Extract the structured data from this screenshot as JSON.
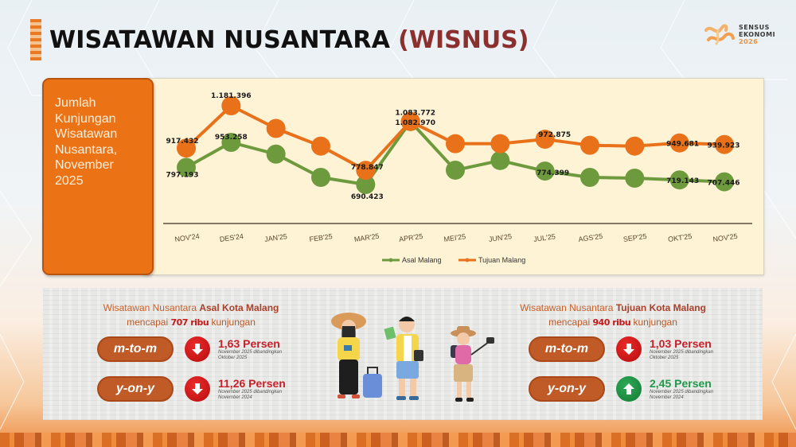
{
  "header": {
    "title_main": "WISATAWAN NUSANTARA",
    "title_accent": "(WISNUS)",
    "logo": {
      "line1": "SENSUS",
      "line2": "EKONOMI",
      "line3": "2026"
    }
  },
  "side_card": {
    "lines": [
      "Jumlah",
      "Kunjungan",
      "Wisatawan",
      "Nusantara,",
      "November",
      "2025"
    ]
  },
  "colors": {
    "asal": "#6e9a3e",
    "tujuan": "#e8711a",
    "side_card": "#ec7216",
    "chart_bg": "#fff3d6",
    "pill": "#c05a26",
    "down": "#c8202a",
    "up": "#1f9a4a"
  },
  "chart_data": {
    "type": "line",
    "title": "Jumlah Kunjungan Wisatawan Nusantara, November 2025",
    "xlabel": "",
    "ylabel": "",
    "grid": false,
    "legend_position": "bottom",
    "categories": [
      "NOV'24",
      "DES'24",
      "JAN'25",
      "FEB'25",
      "MAR'25",
      "APR'25",
      "MEI'25",
      "JUN'25",
      "JUL'25",
      "AGS'25",
      "SEP'25",
      "OKT'25",
      "NOV'25"
    ],
    "series": [
      {
        "name": "Asal Malang",
        "color": "#6e9a3e",
        "values": [
          797193,
          953258,
          880000,
          735000,
          690423,
          1082970,
          780000,
          840000,
          774399,
          735000,
          730000,
          719143,
          707446
        ],
        "labels": [
          "797.193",
          "953.258",
          "",
          "",
          "690.423",
          "1.082.970",
          "",
          "",
          "774.399",
          "",
          "",
          "719.143",
          "707.446"
        ]
      },
      {
        "name": "Tujuan Malang",
        "color": "#e8711a",
        "values": [
          917432,
          1181396,
          1040000,
          930000,
          778847,
          1083772,
          945000,
          945000,
          972875,
          935000,
          930000,
          949681,
          939923
        ],
        "labels": [
          "917.432",
          "1.181.396",
          "",
          "",
          "778.847",
          "1.083.772",
          "",
          "",
          "972.875",
          "",
          "",
          "949.681",
          "939.923"
        ]
      }
    ],
    "legend": [
      "Asal Malang",
      "Tujuan Malang"
    ]
  },
  "asal": {
    "headline_pre": "Wisatawan Nusantara ",
    "headline_bold": "Asal Kota Malang",
    "sub_pre": "mencapai ",
    "sub_num": "707 ribu",
    "sub_post": " kunjungan",
    "mtom": {
      "label": "m-to-m",
      "direction": "down",
      "pct": "1,63 Persen",
      "note": "November 2025 dibandingkan Oktober 2025"
    },
    "yony": {
      "label": "y-on-y",
      "direction": "down",
      "pct": "11,26 Persen",
      "note": "November 2025 dibandingkan November 2024"
    }
  },
  "tujuan": {
    "headline_pre": "Wisatawan Nusantara ",
    "headline_bold": "Tujuan Kota Malang",
    "sub_pre": "mencapai ",
    "sub_num": "940 ribu",
    "sub_post": " kunjungan",
    "mtom": {
      "label": "m-to-m",
      "direction": "down",
      "pct": "1,03 Persen",
      "note": "November 2025 dibandingkan Oktober 2025"
    },
    "yony": {
      "label": "y-on-y",
      "direction": "up",
      "pct": "2,45 Persen",
      "note": "November 2025 dibandingkan November 2024"
    }
  }
}
